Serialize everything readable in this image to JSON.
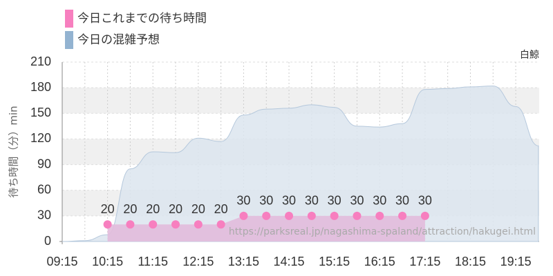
{
  "chart_data": {
    "type": "area",
    "corner_label": "白鯨",
    "y_label": "待ち時間（分）min",
    "watermark": "https://parksreal.jp/nagashima-spaland/attraction/hakugei.html",
    "xlim": [
      555,
      1186
    ],
    "xticks": [
      {
        "value": 555,
        "label": "09:15"
      },
      {
        "value": 615,
        "label": "10:15"
      },
      {
        "value": 675,
        "label": "11:15"
      },
      {
        "value": 735,
        "label": "12:15"
      },
      {
        "value": 795,
        "label": "13:15"
      },
      {
        "value": 855,
        "label": "14:15"
      },
      {
        "value": 915,
        "label": "15:15"
      },
      {
        "value": 975,
        "label": "16:15"
      },
      {
        "value": 1035,
        "label": "17:15"
      },
      {
        "value": 1095,
        "label": "18:15"
      },
      {
        "value": 1155,
        "label": "19:15"
      }
    ],
    "ylim": [
      0,
      210
    ],
    "yticks": [
      0,
      30,
      60,
      90,
      120,
      150,
      180,
      210
    ],
    "grid": true,
    "series": [
      {
        "name": "今日これまでの待ち時間",
        "color": "#f77fbf",
        "fill": "#e2bbdc",
        "x": [
          615,
          645,
          675,
          705,
          735,
          765,
          795,
          825,
          855,
          885,
          915,
          945,
          975,
          1005,
          1035
        ],
        "values": [
          20,
          20,
          20,
          20,
          20,
          20,
          30,
          30,
          30,
          30,
          30,
          30,
          30,
          30,
          30
        ]
      },
      {
        "name": "今日の混雑予想",
        "color": "#93b3d1",
        "fill": "#dce5ee",
        "x": [
          555,
          585,
          615,
          645,
          675,
          705,
          735,
          765,
          795,
          825,
          855,
          885,
          915,
          945,
          975,
          1005,
          1035,
          1065,
          1095,
          1125,
          1155,
          1185
        ],
        "values": [
          0,
          1,
          8,
          85,
          105,
          104,
          121,
          117,
          148,
          155,
          156,
          160,
          157,
          135,
          134,
          138,
          178,
          179,
          181,
          182,
          158,
          112
        ]
      }
    ]
  }
}
